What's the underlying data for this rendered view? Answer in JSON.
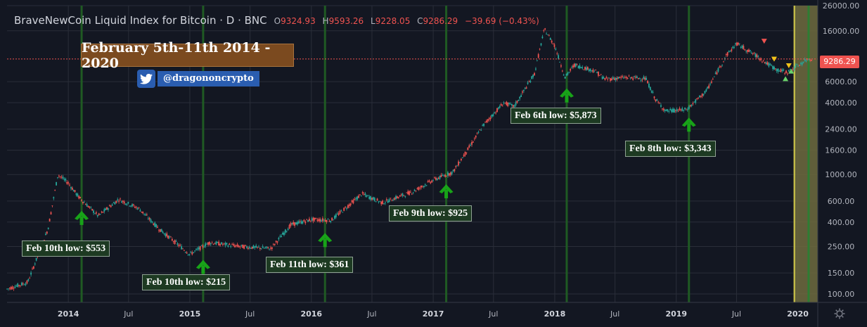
{
  "header": {
    "symbol": "BraveNewCoin Liquid Index for Bitcoin · D · BNC",
    "open_label": "O",
    "open": "9324.93",
    "high_label": "H",
    "high": "9593.26",
    "low_label": "L",
    "low": "9228.05",
    "close_label": "C",
    "close": "9286.29",
    "change": "−39.69 (−0.43%)"
  },
  "banner": "February 5th-11th 2014 - 2020",
  "handle": "@dragononcrypto",
  "last_price": "9286.29",
  "colors": {
    "background": "#131722",
    "up": "#26a69a",
    "down": "#ef5350",
    "vline": "#1f5a23",
    "arrow": "#18a318",
    "band": "#6e6b3e",
    "box_bg": "#1d3a22"
  },
  "chart_data": {
    "type": "line",
    "scale": "log",
    "ylim": [
      85,
      26000
    ],
    "y_ticks": [
      100,
      150,
      250,
      400,
      600,
      1000,
      1600,
      2400,
      4000,
      6000,
      9286.29,
      16000,
      26000
    ],
    "y_tick_labels": [
      "100.00",
      "150.00",
      "250.00",
      "400.00",
      "600.00",
      "1000.00",
      "1600.00",
      "2400.00",
      "4000.00",
      "6000.00",
      "9286.29",
      "16000.00",
      "26000.00"
    ],
    "x_ticks": [
      "2014",
      "Jul",
      "2015",
      "Jul",
      "2016",
      "Jul",
      "2017",
      "Jul",
      "2018",
      "Jul",
      "2019",
      "Jul",
      "2020"
    ],
    "series": [
      {
        "x": [
          "2013-07",
          "2013-09",
          "2013-11",
          "2013-12",
          "2014-01",
          "2014-02",
          "2014-04",
          "2014-06",
          "2014-08",
          "2014-10",
          "2015-01",
          "2015-03",
          "2015-06",
          "2015-09",
          "2015-11",
          "2016-01",
          "2016-03",
          "2016-06",
          "2016-08",
          "2016-11",
          "2017-01",
          "2017-03",
          "2017-05",
          "2017-06",
          "2017-08",
          "2017-09",
          "2017-11",
          "2017-12",
          "2018-01",
          "2018-02",
          "2018-03",
          "2018-05",
          "2018-06",
          "2018-08",
          "2018-10",
          "2018-11",
          "2018-12",
          "2019-02",
          "2019-04",
          "2019-06",
          "2019-07",
          "2019-09",
          "2019-10",
          "2019-11",
          "2019-12",
          "2020-02"
        ],
        "values": [
          110,
          125,
          350,
          1000,
          850,
          650,
          450,
          620,
          520,
          350,
          215,
          270,
          250,
          240,
          380,
          420,
          415,
          690,
          580,
          720,
          900,
          1050,
          1900,
          2600,
          4000,
          3700,
          7000,
          16500,
          12000,
          6500,
          8300,
          7400,
          6300,
          6500,
          6400,
          4200,
          3400,
          3500,
          5000,
          10000,
          12500,
          9800,
          8500,
          7500,
          7200,
          9286
        ]
      }
    ],
    "annotations": [
      {
        "date": "2014-02-10",
        "low": 553,
        "text": "Feb 10th low: $553"
      },
      {
        "date": "2015-02-10",
        "low": 215,
        "text": "Feb 10th low: $215"
      },
      {
        "date": "2016-02-11",
        "low": 361,
        "text": "Feb 11th low: $361"
      },
      {
        "date": "2017-02-09",
        "low": 925,
        "text": "Feb 9th low: $925"
      },
      {
        "date": "2018-02-06",
        "low": 5873,
        "text": "Feb 6th low: $5,873"
      },
      {
        "date": "2019-02-08",
        "low": 3343,
        "text": "Feb 8th low: $3,343"
      }
    ],
    "highlight_range": [
      "2019-12-18",
      "2020-03-01"
    ],
    "grid": true
  }
}
